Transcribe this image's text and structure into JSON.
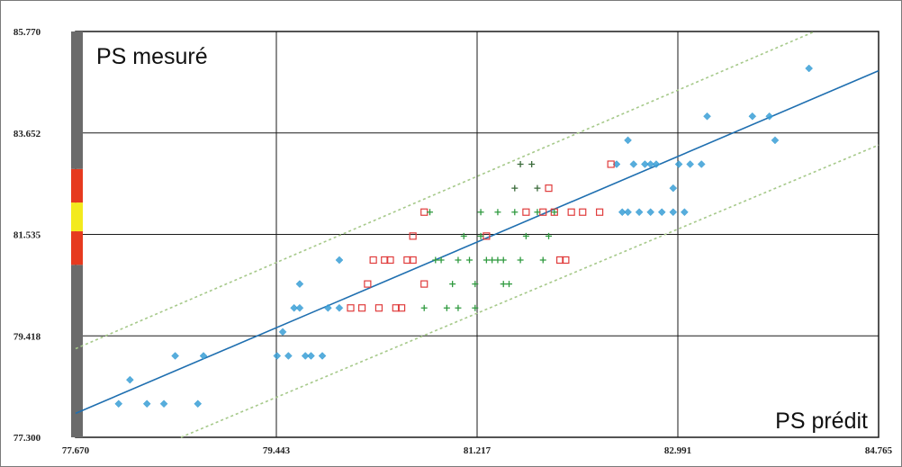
{
  "chart_data": {
    "type": "scatter",
    "xlabel": "PS  prédit",
    "ylabel": "PS  mesuré",
    "xlim": [
      77.67,
      84.765
    ],
    "ylim": [
      77.3,
      85.77
    ],
    "x_ticks": [
      "77.670",
      "79.443",
      "81.217",
      "82.991",
      "84.765"
    ],
    "y_ticks": [
      "77.300",
      "79.418",
      "81.535",
      "83.652",
      "85.770"
    ],
    "grid": true,
    "series": [
      {
        "marker": "diamond",
        "color": "#3a9fd6",
        "points": [
          [
            78.05,
            78.0
          ],
          [
            78.15,
            78.5
          ],
          [
            78.3,
            78.0
          ],
          [
            78.45,
            78.0
          ],
          [
            78.55,
            79.0
          ],
          [
            78.75,
            78.0
          ],
          [
            78.8,
            79.0
          ],
          [
            79.45,
            79.0
          ],
          [
            79.5,
            79.5
          ],
          [
            79.55,
            79.0
          ],
          [
            79.6,
            80.0
          ],
          [
            79.65,
            80.5
          ],
          [
            79.65,
            80.0
          ],
          [
            79.7,
            79.0
          ],
          [
            79.75,
            79.0
          ],
          [
            79.85,
            79.0
          ],
          [
            79.9,
            80.0
          ],
          [
            80.0,
            81.0
          ],
          [
            80.0,
            80.0
          ],
          [
            82.55,
            83.5
          ],
          [
            82.45,
            83.0
          ],
          [
            82.5,
            82.0
          ],
          [
            82.55,
            82.0
          ],
          [
            82.6,
            83.0
          ],
          [
            82.65,
            82.0
          ],
          [
            82.7,
            83.0
          ],
          [
            82.75,
            83.0
          ],
          [
            82.75,
            82.0
          ],
          [
            82.8,
            83.0
          ],
          [
            82.85,
            82.0
          ],
          [
            82.95,
            82.0
          ],
          [
            82.95,
            82.5
          ],
          [
            83.0,
            83.0
          ],
          [
            83.05,
            82.0
          ],
          [
            83.1,
            83.0
          ],
          [
            83.2,
            83.0
          ],
          [
            83.25,
            84.0
          ],
          [
            83.65,
            84.0
          ],
          [
            83.8,
            84.0
          ],
          [
            83.85,
            83.5
          ],
          [
            84.15,
            85.0
          ]
        ]
      },
      {
        "marker": "square",
        "color": "#e03c3c",
        "points": [
          [
            80.1,
            80.0
          ],
          [
            80.2,
            80.0
          ],
          [
            80.25,
            80.5
          ],
          [
            80.3,
            81.0
          ],
          [
            80.35,
            80.0
          ],
          [
            80.4,
            81.0
          ],
          [
            80.45,
            81.0
          ],
          [
            80.5,
            80.0
          ],
          [
            80.55,
            80.0
          ],
          [
            80.6,
            81.0
          ],
          [
            80.65,
            81.5
          ],
          [
            80.65,
            81.0
          ],
          [
            80.75,
            80.5
          ],
          [
            80.75,
            82.0
          ],
          [
            81.3,
            81.5
          ],
          [
            81.65,
            82.0
          ],
          [
            81.8,
            82.0
          ],
          [
            81.85,
            82.5
          ],
          [
            81.9,
            82.0
          ],
          [
            81.95,
            81.0
          ],
          [
            82.0,
            81.0
          ],
          [
            82.05,
            82.0
          ],
          [
            82.15,
            82.0
          ],
          [
            82.3,
            82.0
          ],
          [
            82.4,
            83.0
          ]
        ]
      },
      {
        "marker": "plus",
        "color": "#2f9a3f",
        "points": [
          [
            80.75,
            80.0
          ],
          [
            80.8,
            82.0
          ],
          [
            80.85,
            81.0
          ],
          [
            80.9,
            81.0
          ],
          [
            80.95,
            80.0
          ],
          [
            81.0,
            80.5
          ],
          [
            81.05,
            81.0
          ],
          [
            81.1,
            81.5
          ],
          [
            81.15,
            81.0
          ],
          [
            81.2,
            80.5
          ],
          [
            81.25,
            81.5
          ],
          [
            81.25,
            82.0
          ],
          [
            81.3,
            81.0
          ],
          [
            81.35,
            81.0
          ],
          [
            81.4,
            82.0
          ],
          [
            81.45,
            81.0
          ],
          [
            81.45,
            80.5
          ],
          [
            81.5,
            80.5
          ],
          [
            81.55,
            82.0
          ],
          [
            81.6,
            81.0
          ],
          [
            81.65,
            81.5
          ],
          [
            81.8,
            81.0
          ],
          [
            81.85,
            81.5
          ],
          [
            81.9,
            82.0
          ],
          [
            81.75,
            82.0
          ],
          [
            81.4,
            81.0
          ],
          [
            81.2,
            80.0
          ],
          [
            81.05,
            80.0
          ]
        ]
      },
      {
        "marker": "plus",
        "color": "#3a6a3a",
        "points": [
          [
            81.55,
            82.5
          ],
          [
            81.6,
            83.0
          ],
          [
            81.75,
            82.5
          ],
          [
            81.7,
            83.0
          ]
        ]
      }
    ],
    "fit_line": {
      "color": "#1f6fb0",
      "points": [
        [
          77.67,
          77.8
        ],
        [
          84.765,
          84.95
        ]
      ]
    },
    "confidence_lines": {
      "color": "#a6c98a",
      "upper": [
        [
          77.67,
          79.15
        ],
        [
          84.2,
          85.77
        ]
      ],
      "lower": [
        [
          78.6,
          77.3
        ],
        [
          84.765,
          83.4
        ]
      ]
    },
    "side_scale": [
      {
        "from": 77.3,
        "to": 80.9,
        "color": "#6b6b6b"
      },
      {
        "from": 80.9,
        "to": 81.6,
        "color": "#e63a1f"
      },
      {
        "from": 81.6,
        "to": 82.2,
        "color": "#f3ea1e"
      },
      {
        "from": 82.2,
        "to": 82.9,
        "color": "#e63a1f"
      },
      {
        "from": 82.9,
        "to": 85.77,
        "color": "#6b6b6b"
      }
    ]
  }
}
